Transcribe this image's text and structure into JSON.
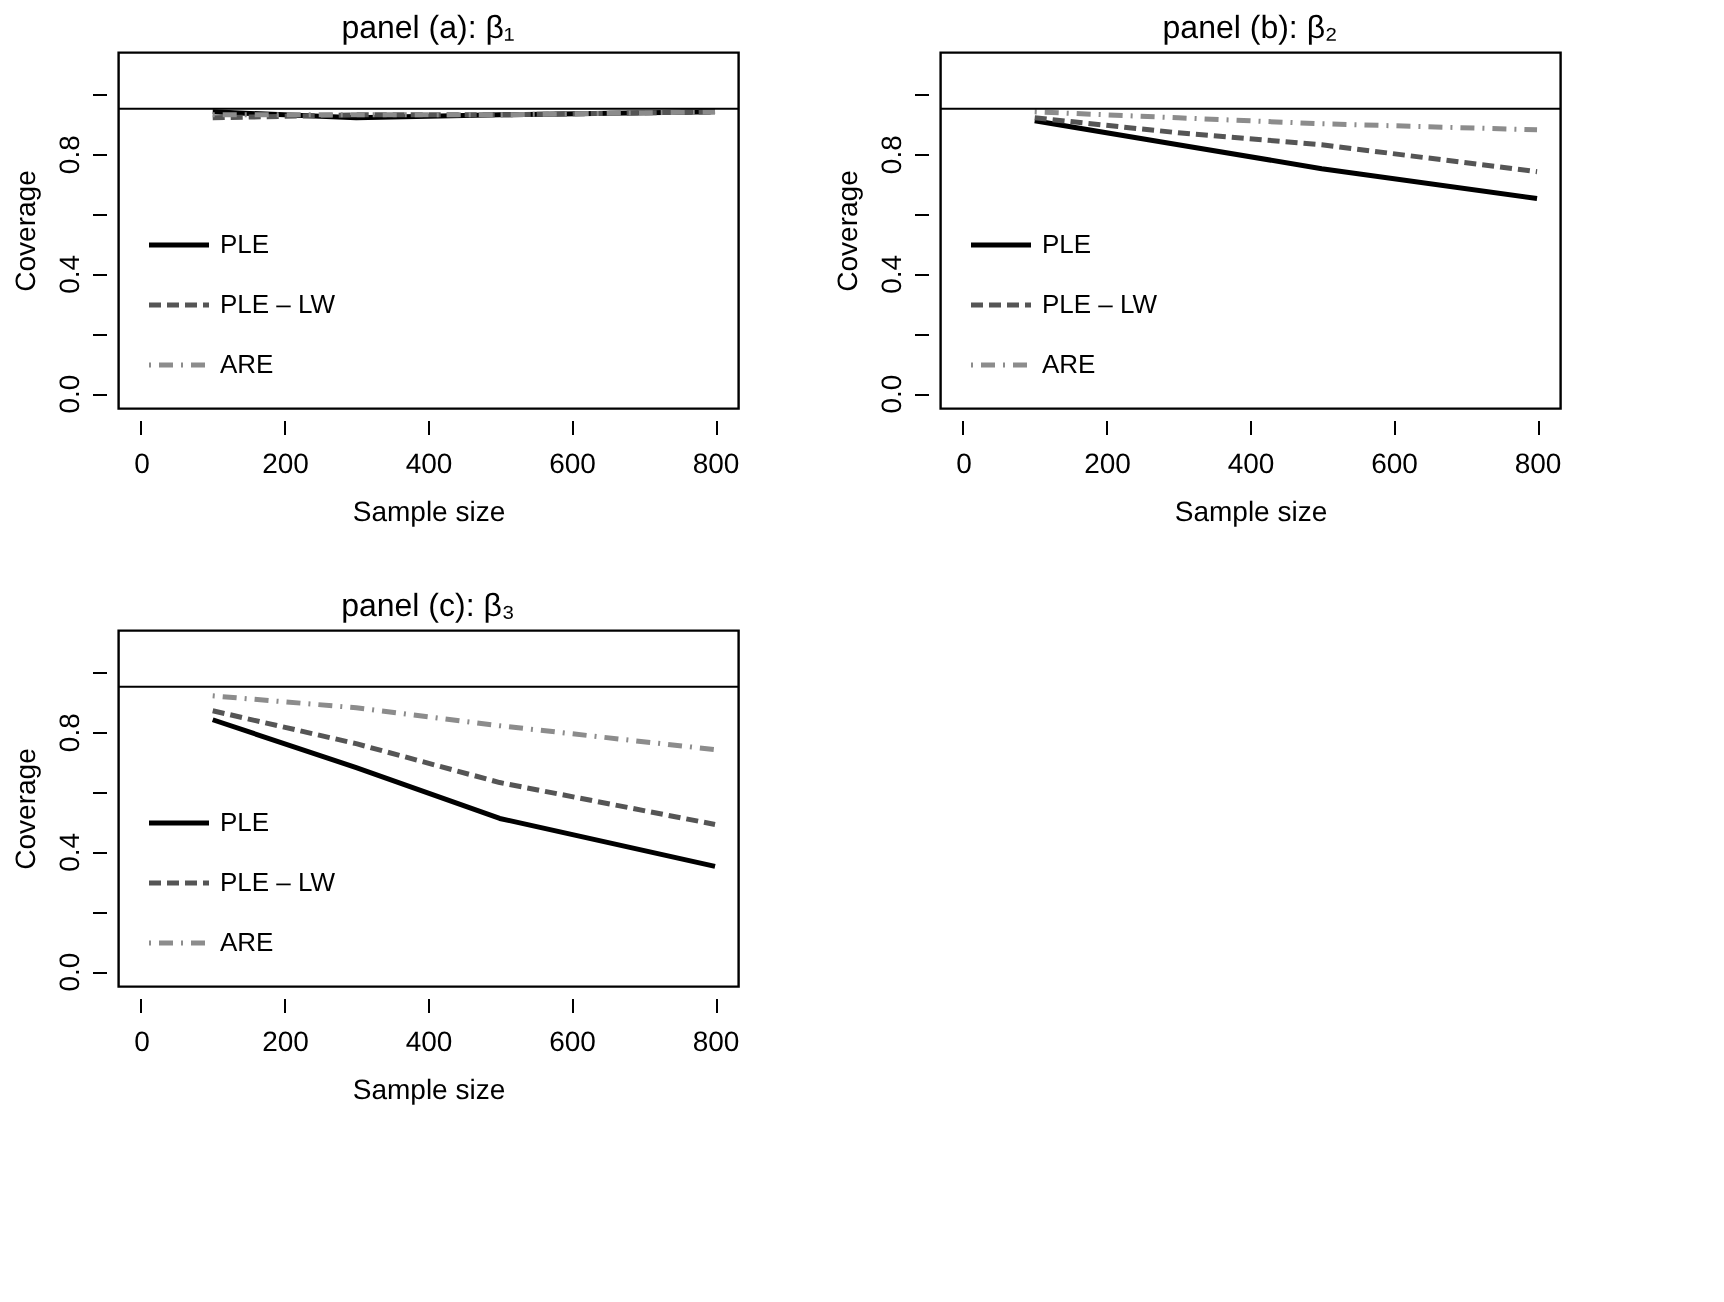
{
  "chart_data": [
    {
      "type": "line",
      "title": "panel (a): β₁",
      "xlabel": "Sample size",
      "ylabel": "Coverage",
      "x": [
        100,
        300,
        500,
        800
      ],
      "series": [
        {
          "name": "PLE",
          "color": "#000000",
          "line_style": "solid",
          "values": [
            0.94,
            0.92,
            0.93,
            0.94
          ]
        },
        {
          "name": "PLE – LW",
          "color": "#555555",
          "line_style": "dashed",
          "values": [
            0.92,
            0.93,
            0.93,
            0.94
          ]
        },
        {
          "name": "ARE",
          "color": "#8c8c8c",
          "line_style": "dotted",
          "values": [
            0.93,
            0.93,
            0.93,
            0.94
          ]
        }
      ],
      "xlim": [
        -32,
        832
      ],
      "xticks": [
        0,
        200,
        400,
        600,
        800
      ],
      "ylim": [
        -0.05,
        1.14
      ],
      "yticks": [
        {
          "value": 0,
          "label": "0.0"
        },
        {
          "value": 0.2,
          "label": null
        },
        {
          "value": 0.4,
          "label": "0.4"
        },
        {
          "value": 0.6,
          "label": null
        },
        {
          "value": 0.8,
          "label": "0.8"
        },
        {
          "value": 1.0,
          "label": null
        }
      ],
      "ref_lines": [
        {
          "axis": "y",
          "value": 0.95,
          "color": "#000000"
        }
      ],
      "grid": false,
      "legend": "bottom left",
      "marker": "none"
    },
    {
      "type": "line",
      "title": "panel (b): β₂",
      "xlabel": "Sample size",
      "ylabel": "Coverage",
      "x": [
        100,
        300,
        500,
        800
      ],
      "series": [
        {
          "name": "PLE",
          "color": "#000000",
          "line_style": "solid",
          "values": [
            0.91,
            0.83,
            0.75,
            0.65
          ]
        },
        {
          "name": "PLE – LW",
          "color": "#555555",
          "line_style": "dashed",
          "values": [
            0.92,
            0.87,
            0.83,
            0.74
          ]
        },
        {
          "name": "ARE",
          "color": "#8c8c8c",
          "line_style": "dotted",
          "values": [
            0.94,
            0.92,
            0.9,
            0.88
          ]
        }
      ],
      "xlim": [
        -32,
        832
      ],
      "xticks": [
        0,
        200,
        400,
        600,
        800
      ],
      "ylim": [
        -0.05,
        1.14
      ],
      "yticks": [
        {
          "value": 0,
          "label": "0.0"
        },
        {
          "value": 0.2,
          "label": null
        },
        {
          "value": 0.4,
          "label": "0.4"
        },
        {
          "value": 0.6,
          "label": null
        },
        {
          "value": 0.8,
          "label": "0.8"
        },
        {
          "value": 1.0,
          "label": null
        }
      ],
      "ref_lines": [
        {
          "axis": "y",
          "value": 0.95,
          "color": "#000000"
        }
      ],
      "grid": false,
      "legend": "bottom left",
      "marker": "none"
    },
    {
      "type": "line",
      "title": "panel (c): β₃",
      "xlabel": "Sample size",
      "ylabel": "Coverage",
      "x": [
        100,
        300,
        500,
        800
      ],
      "series": [
        {
          "name": "PLE",
          "color": "#000000",
          "line_style": "solid",
          "values": [
            0.84,
            0.68,
            0.51,
            0.35
          ]
        },
        {
          "name": "PLE – LW",
          "color": "#555555",
          "line_style": "dashed",
          "values": [
            0.87,
            0.76,
            0.63,
            0.49
          ]
        },
        {
          "name": "ARE",
          "color": "#8c8c8c",
          "line_style": "dotted",
          "values": [
            0.92,
            0.88,
            0.82,
            0.74
          ]
        }
      ],
      "xlim": [
        -32,
        832
      ],
      "xticks": [
        0,
        200,
        400,
        600,
        800
      ],
      "ylim": [
        -0.05,
        1.14
      ],
      "yticks": [
        {
          "value": 0,
          "label": "0.0"
        },
        {
          "value": 0.2,
          "label": null
        },
        {
          "value": 0.4,
          "label": "0.4"
        },
        {
          "value": 0.6,
          "label": null
        },
        {
          "value": 0.8,
          "label": "0.8"
        },
        {
          "value": 1.0,
          "label": null
        }
      ],
      "ref_lines": [
        {
          "axis": "y",
          "value": 0.95,
          "color": "#000000"
        }
      ],
      "grid": false,
      "legend": "bottom left",
      "marker": "none"
    }
  ]
}
